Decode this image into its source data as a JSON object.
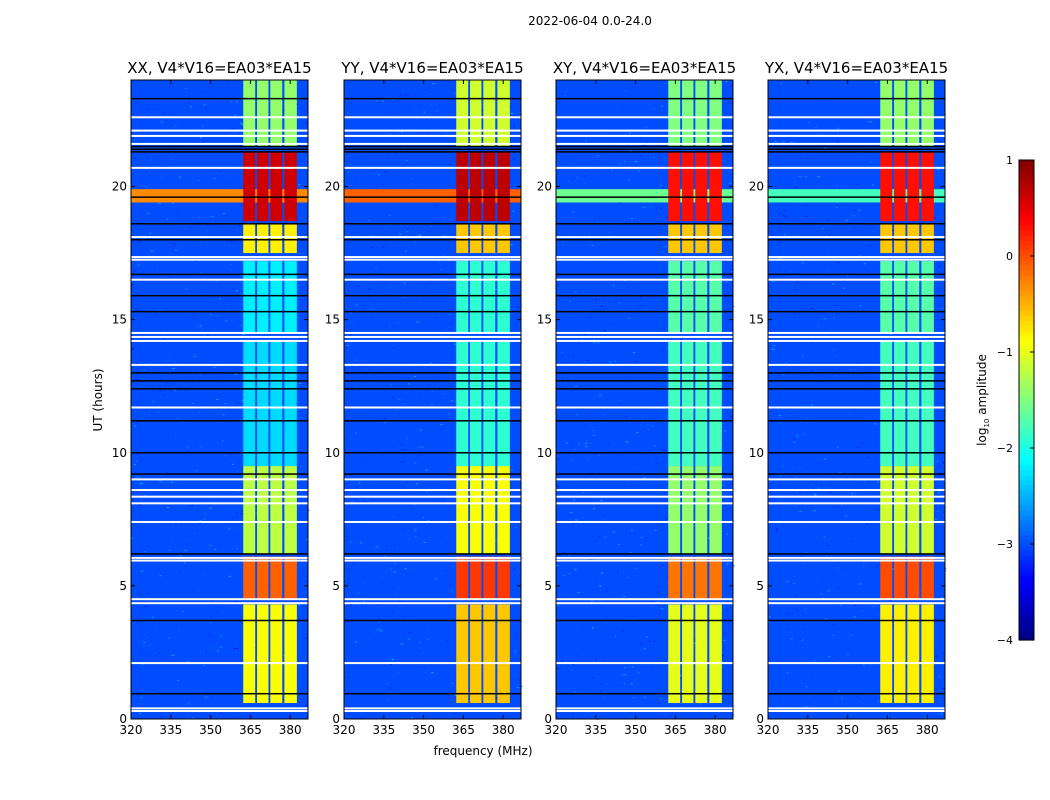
{
  "chart_data": {
    "type": "heatmap",
    "suptitle": "2022-06-04 0.0-24.0",
    "xlabel": "frequency (MHz)",
    "ylabel": "UT (hours)",
    "xlim": [
      320,
      386.7
    ],
    "ylim": [
      0,
      24
    ],
    "xticks": [
      "320",
      "335",
      "350",
      "365",
      "380"
    ],
    "xtick_values": [
      320,
      335,
      350,
      365,
      380
    ],
    "yticks": [
      "0",
      "5",
      "10",
      "15",
      "20"
    ],
    "ytick_values": [
      0,
      5,
      10,
      15,
      20
    ],
    "panels": [
      {
        "title": "XX, V4*V16=EA03*EA15"
      },
      {
        "title": "YY, V4*V16=EA03*EA15"
      },
      {
        "title": "XY, V4*V16=EA03*EA15"
      },
      {
        "title": "YX, V4*V16=EA03*EA15"
      }
    ],
    "background_log_amplitude": -3.0,
    "sub_bands_mhz": [
      [
        362.3,
        366.8
      ],
      [
        367.5,
        371.8
      ],
      [
        372.5,
        377.0
      ],
      [
        377.8,
        382.5
      ]
    ],
    "band_segments": [
      {
        "hours": [
          0.6,
          4.3
        ],
        "log_amplitude": [
          -0.9,
          -0.6,
          -1.0,
          -0.8
        ]
      },
      {
        "hours": [
          4.5,
          6.1
        ],
        "log_amplitude": [
          -0.1,
          0.1,
          -0.2,
          0.0
        ]
      },
      {
        "hours": [
          6.2,
          9.5
        ],
        "log_amplitude": [
          -1.2,
          -0.9,
          -1.4,
          -1.1
        ]
      },
      {
        "hours": [
          9.5,
          14.2
        ],
        "log_amplitude": [
          -2.3,
          -1.9,
          -1.8,
          -1.8
        ]
      },
      {
        "hours": [
          14.5,
          17.2
        ],
        "log_amplitude": [
          -2.2,
          -1.9,
          -1.7,
          -1.7
        ]
      },
      {
        "hours": [
          17.5,
          18.6
        ],
        "log_amplitude": [
          -0.8,
          -0.6,
          -0.6,
          -0.6
        ]
      },
      {
        "hours": [
          18.7,
          21.3
        ],
        "log_amplitude": [
          0.6,
          0.7,
          0.3,
          0.3
        ]
      },
      {
        "hours": [
          21.5,
          24.0
        ],
        "log_amplitude": [
          -1.4,
          -1.1,
          -1.5,
          -1.4
        ]
      }
    ],
    "broadband_rfi": [
      {
        "hours": [
          19.4,
          19.9
        ],
        "log_amplitude": [
          -0.3,
          -0.1,
          -1.6,
          -1.8
        ]
      }
    ],
    "flagged_rows_hours_white": [
      0.3,
      0.4,
      2.1,
      4.35,
      4.5,
      5.95,
      6.05,
      7.4,
      8.1,
      8.35,
      8.6,
      9.0,
      11.7,
      13.3,
      14.2,
      14.35,
      14.5,
      16.5,
      17.25,
      17.35,
      18.1,
      20.7,
      21.6,
      21.9,
      22.1,
      22.6
    ],
    "flagged_rows_hours_black": [
      0.95,
      3.7,
      6.2,
      9.2,
      10.0,
      11.2,
      12.4,
      12.7,
      13.0,
      15.3,
      15.9,
      16.7,
      18.0,
      18.6,
      19.6,
      21.3,
      21.4,
      21.5,
      23.3
    ],
    "colorbar": {
      "label_prefix": "log",
      "label_sub": "10",
      "label_suffix": " amplitude",
      "range": [
        -4,
        1
      ],
      "ticks": [
        "1",
        "0",
        "−1",
        "−2",
        "−3",
        "−4"
      ],
      "tick_values": [
        1,
        0,
        -1,
        -2,
        -3,
        -4
      ],
      "colormap": "jet"
    }
  }
}
